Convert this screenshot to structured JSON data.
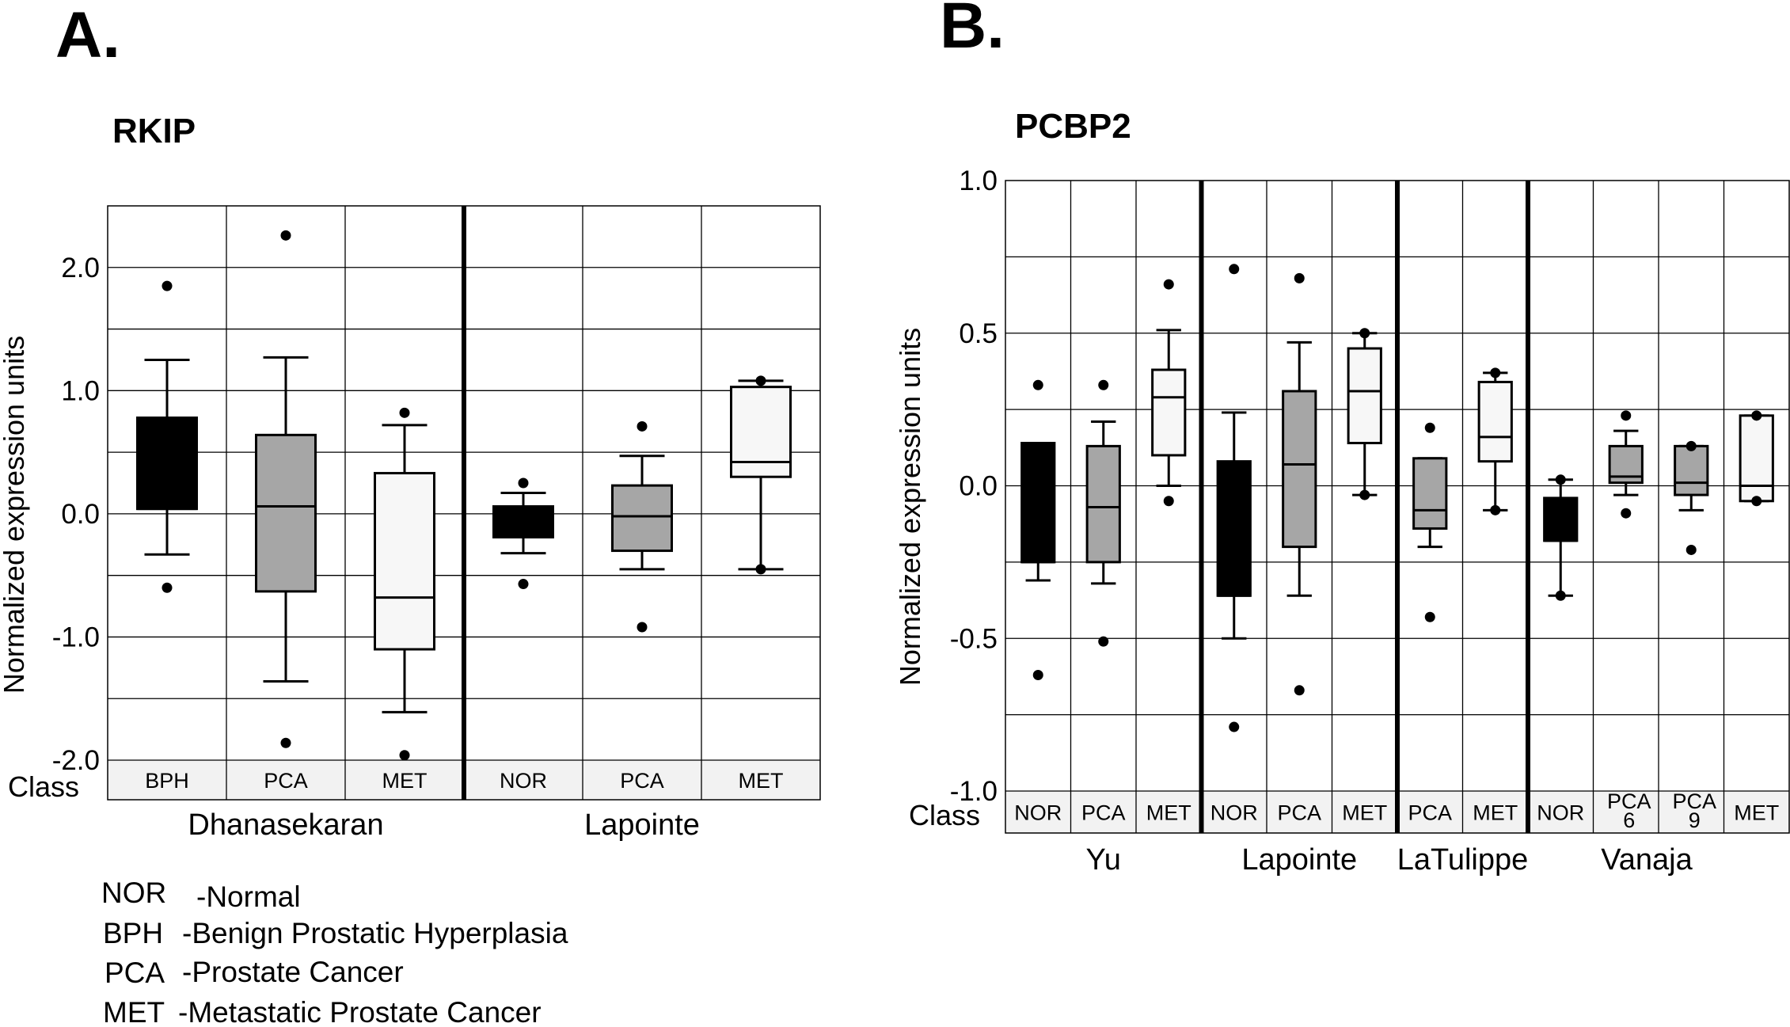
{
  "panels": {
    "a": {
      "letter": "A.",
      "title": "RKIP"
    },
    "b": {
      "letter": "B.",
      "title": "PCBP2"
    }
  },
  "legend": [
    {
      "abbr": "NOR",
      "desc": "-Normal"
    },
    {
      "abbr": "BPH",
      "desc": "-Benign Prostatic Hyperplasia"
    },
    {
      "abbr": "PCA",
      "desc": "-Prostate Cancer"
    },
    {
      "abbr": "MET",
      "desc": "-Metastatic Prostate Cancer"
    }
  ],
  "colors": {
    "NOR": "#000000",
    "BPH": "#000000",
    "PCA": "#a6a6a6",
    "MET": "#f7f7f7"
  },
  "chart_data": [
    {
      "type": "box",
      "title": "RKIP",
      "ylabel": "Normalized expression units",
      "class_label": "Class",
      "ylim": [
        -2.0,
        2.5
      ],
      "yticks": [
        2.0,
        1.0,
        0.0,
        -1.0,
        -2.0
      ],
      "ytick_labels": [
        "2.0",
        "1.0",
        "0.0",
        "-1.0",
        "-2.0"
      ],
      "grid": true,
      "groups": [
        {
          "name": "Dhanasekaran",
          "boxes": [
            {
              "class": "BPH",
              "whisker_low": -0.33,
              "q1": 0.04,
              "median": 0.04,
              "q3": 0.78,
              "whisker_high": 1.25,
              "outliers": [
                1.85,
                -0.6
              ]
            },
            {
              "class": "PCA",
              "whisker_low": -1.36,
              "q1": -0.63,
              "median": 0.06,
              "q3": 0.64,
              "whisker_high": 1.27,
              "outliers": [
                2.26,
                -1.86
              ]
            },
            {
              "class": "MET",
              "whisker_low": -1.61,
              "q1": -1.1,
              "median": -0.68,
              "q3": 0.33,
              "whisker_high": 0.72,
              "outliers": [
                0.82,
                -1.96
              ]
            }
          ]
        },
        {
          "name": "Lapointe",
          "boxes": [
            {
              "class": "NOR",
              "whisker_low": -0.32,
              "q1": -0.19,
              "median": -0.19,
              "q3": 0.06,
              "whisker_high": 0.17,
              "outliers": [
                0.25,
                -0.57
              ]
            },
            {
              "class": "PCA",
              "whisker_low": -0.45,
              "q1": -0.3,
              "median": -0.02,
              "q3": 0.23,
              "whisker_high": 0.47,
              "outliers": [
                0.71,
                -0.92
              ]
            },
            {
              "class": "MET",
              "whisker_low": -0.45,
              "q1": 0.3,
              "median": 0.42,
              "q3": 1.03,
              "whisker_high": 1.08,
              "outliers": [
                1.08,
                -0.45
              ]
            }
          ]
        }
      ]
    },
    {
      "type": "box",
      "title": "PCBP2",
      "ylabel": "Normalized expression units",
      "class_label": "Class",
      "ylim": [
        -1.0,
        1.0
      ],
      "yticks": [
        1.0,
        0.5,
        0.0,
        -0.5,
        -1.0
      ],
      "ytick_labels": [
        "1.0",
        "0.5",
        "0.0",
        "-0.5",
        "-1.0"
      ],
      "grid": true,
      "groups": [
        {
          "name": "Yu",
          "boxes": [
            {
              "class": "NOR",
              "whisker_low": -0.31,
              "q1": -0.25,
              "median": -0.25,
              "q3": 0.14,
              "whisker_high": 0.14,
              "outliers": [
                0.33,
                -0.62
              ]
            },
            {
              "class": "PCA",
              "whisker_low": -0.32,
              "q1": -0.25,
              "median": -0.07,
              "q3": 0.13,
              "whisker_high": 0.21,
              "outliers": [
                0.33,
                -0.51
              ]
            },
            {
              "class": "MET",
              "whisker_low": 0.0,
              "q1": 0.1,
              "median": 0.29,
              "q3": 0.38,
              "whisker_high": 0.51,
              "outliers": [
                0.66,
                -0.05
              ]
            }
          ]
        },
        {
          "name": "Lapointe",
          "boxes": [
            {
              "class": "NOR",
              "whisker_low": -0.5,
              "q1": -0.36,
              "median": -0.36,
              "q3": 0.08,
              "whisker_high": 0.24,
              "outliers": [
                0.71,
                -0.79
              ]
            },
            {
              "class": "PCA",
              "whisker_low": -0.36,
              "q1": -0.2,
              "median": 0.07,
              "q3": 0.31,
              "whisker_high": 0.47,
              "outliers": [
                0.68,
                -0.67
              ]
            },
            {
              "class": "MET",
              "whisker_low": -0.03,
              "q1": 0.14,
              "median": 0.31,
              "q3": 0.45,
              "whisker_high": 0.5,
              "outliers": [
                0.5,
                -0.03
              ]
            }
          ]
        },
        {
          "name": "LaTulippe",
          "boxes": [
            {
              "class": "PCA",
              "whisker_low": -0.2,
              "q1": -0.14,
              "median": -0.08,
              "q3": 0.09,
              "whisker_high": 0.09,
              "outliers": [
                0.19,
                -0.43
              ]
            },
            {
              "class": "MET",
              "whisker_low": -0.08,
              "q1": 0.08,
              "median": 0.16,
              "q3": 0.34,
              "whisker_high": 0.37,
              "outliers": [
                0.37,
                -0.08
              ]
            }
          ]
        },
        {
          "name": "Vanaja",
          "boxes": [
            {
              "class": "NOR",
              "label_lines": [
                "NOR"
              ],
              "whisker_low": -0.36,
              "q1": -0.18,
              "median": -0.18,
              "q3": -0.04,
              "whisker_high": 0.02,
              "outliers": [
                0.02,
                -0.36
              ]
            },
            {
              "class": "PCA",
              "label_lines": [
                "PCA",
                "6"
              ],
              "whisker_low": -0.03,
              "q1": 0.01,
              "median": 0.03,
              "q3": 0.13,
              "whisker_high": 0.18,
              "outliers": [
                0.23,
                -0.09
              ]
            },
            {
              "class": "PCA",
              "label_lines": [
                "PCA",
                "9"
              ],
              "whisker_low": -0.08,
              "q1": -0.03,
              "median": 0.01,
              "q3": 0.13,
              "whisker_high": 0.13,
              "outliers": [
                0.13,
                -0.21
              ]
            },
            {
              "class": "MET",
              "label_lines": [
                "MET"
              ],
              "whisker_low": -0.05,
              "q1": -0.05,
              "median": 0.0,
              "q3": 0.23,
              "whisker_high": 0.23,
              "outliers": [
                0.23,
                -0.05
              ]
            }
          ]
        }
      ]
    }
  ]
}
